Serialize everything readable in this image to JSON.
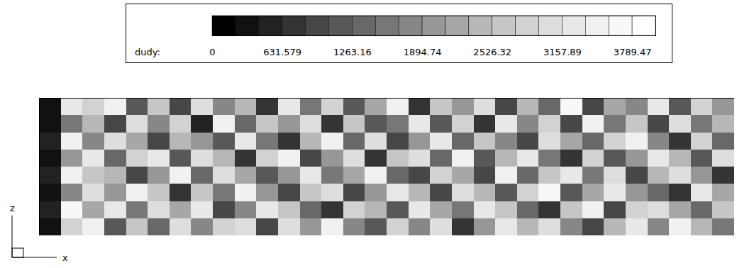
{
  "chart_data": {
    "type": "heatmap",
    "tick_labels": false,
    "xlabel": "x",
    "zlabel": "z",
    "colorbar": {
      "label": "dudy:",
      "lim": [
        0,
        4000
      ],
      "levels": [
        0,
        210.526,
        421.053,
        631.579,
        842.105,
        1052.63,
        1263.16,
        1473.68,
        1684.21,
        1894.74,
        2105.26,
        2315.79,
        2526.32,
        2736.84,
        2947.37,
        3157.89,
        3368.42,
        3578.95,
        3789.47,
        4000
      ],
      "ticks": [
        0,
        631.579,
        1263.16,
        1894.74,
        2526.32,
        3157.89,
        3789.47
      ]
    },
    "values": [
      [
        400,
        3200,
        2800,
        3400,
        1200,
        2600,
        900,
        3000,
        1800,
        2400,
        700,
        3300,
        1500,
        2900,
        1100,
        2200,
        3500,
        800,
        2700,
        1900,
        3100,
        1000,
        2500,
        1400,
        3600,
        900,
        2300,
        1700,
        3200,
        1200,
        2800,
        2000
      ],
      [
        300,
        1500,
        2400,
        1000,
        3100,
        1700,
        2900,
        600,
        3400,
        1300,
        2700,
        1900,
        3000,
        800,
        2600,
        1200,
        1600,
        3200,
        1100,
        2800,
        700,
        3300,
        1800,
        2900,
        1000,
        3400,
        1500,
        2600,
        900,
        3000,
        1600,
        2500
      ],
      [
        500,
        3500,
        1800,
        3000,
        2200,
        900,
        2500,
        1900,
        1100,
        3200,
        1500,
        800,
        2400,
        3400,
        1300,
        3000,
        900,
        2100,
        3300,
        1400,
        2600,
        1800,
        900,
        3100,
        2200,
        1300,
        2800,
        3500,
        1800,
        700,
        2900,
        1400
      ],
      [
        400,
        2100,
        3300,
        1400,
        2800,
        3300,
        1200,
        3100,
        2500,
        700,
        2900,
        3400,
        1000,
        2000,
        3100,
        800,
        2700,
        3000,
        1300,
        3500,
        1200,
        2500,
        3200,
        1500,
        700,
        2800,
        1100,
        1900,
        3300,
        2500,
        1100,
        3100
      ],
      [
        600,
        3400,
        2600,
        2500,
        1000,
        2000,
        3400,
        1300,
        3000,
        2300,
        1200,
        2100,
        3300,
        1600,
        2200,
        3500,
        1400,
        900,
        2800,
        2300,
        900,
        3400,
        1400,
        2700,
        3300,
        1600,
        3000,
        1000,
        2400,
        3100,
        1900,
        800
      ],
      [
        300,
        1700,
        3100,
        1900,
        3400,
        2700,
        800,
        2600,
        1600,
        3500,
        2000,
        900,
        2700,
        3100,
        900,
        1900,
        3200,
        2500,
        1000,
        3000,
        2400,
        1100,
        2900,
        3600,
        1200,
        2300,
        3300,
        2100,
        1400,
        800,
        3200,
        2300
      ],
      [
        500,
        3600,
        2200,
        3200,
        1500,
        3100,
        2200,
        3300,
        900,
        1800,
        3300,
        2600,
        1400,
        800,
        2800,
        2500,
        1100,
        3300,
        2300,
        1500,
        3200,
        2700,
        1300,
        800,
        2600,
        3400,
        900,
        2800,
        3100,
        2200,
        1300,
        2700
      ],
      [
        400,
        2900,
        3500,
        1200,
        2600,
        1400,
        3000,
        1700,
        2800,
        3100,
        1000,
        3000,
        2100,
        3400,
        1700,
        1200,
        2900,
        1700,
        3100,
        800,
        2100,
        3300,
        2500,
        3000,
        1800,
        1000,
        2500,
        3200,
        1700,
        3500,
        2400,
        1500
      ]
    ]
  }
}
